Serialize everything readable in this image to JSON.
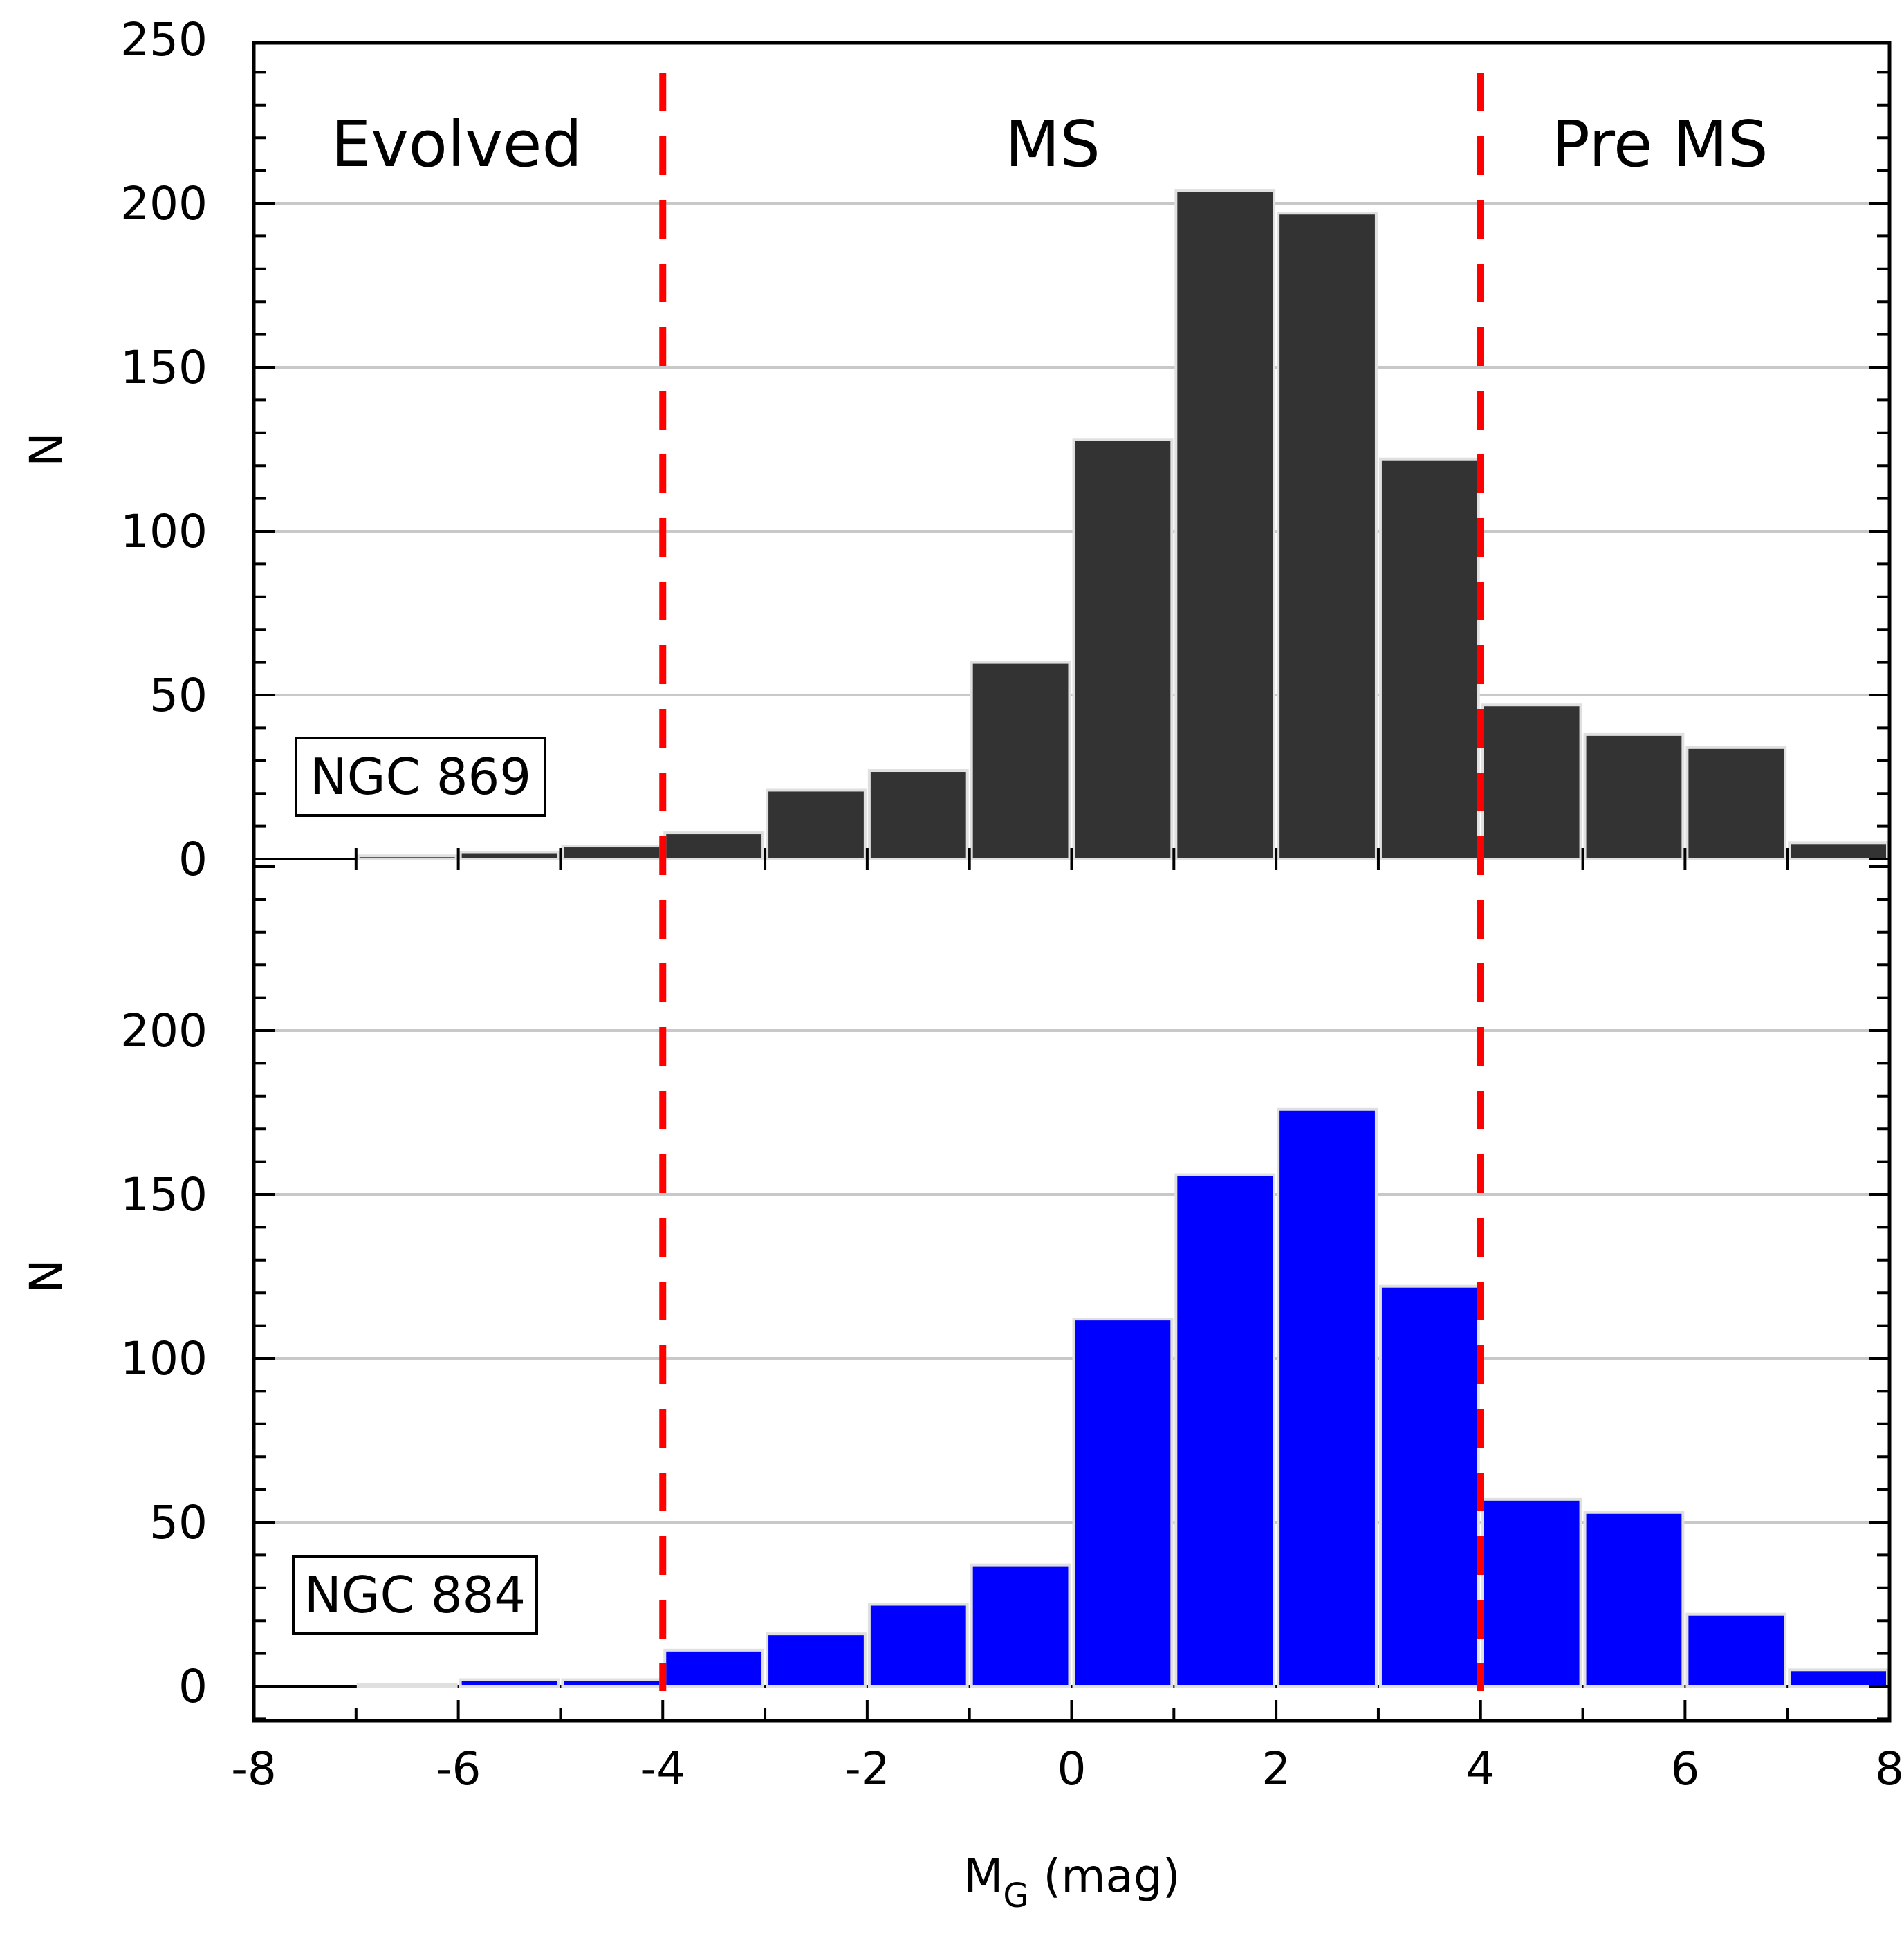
{
  "chart_data": [
    {
      "type": "bar",
      "panel_label": "NGC 869",
      "ylabel": "N",
      "xlim": [
        -8,
        8
      ],
      "ylim": [
        0,
        250
      ],
      "yticks": [
        0,
        50,
        100,
        150,
        200,
        250
      ],
      "bin_edges": [
        -7,
        -6,
        -5,
        -4,
        -3,
        -2,
        -1,
        0,
        1,
        2,
        3,
        4,
        5,
        6,
        7,
        8
      ],
      "values": [
        1,
        2,
        4,
        8,
        21,
        27,
        60,
        128,
        204,
        197,
        122,
        47,
        38,
        34,
        5
      ],
      "bar_color": "#333333",
      "grid": true,
      "regions": [
        {
          "label": "Evolved",
          "x_from": -8,
          "x_to": -4
        },
        {
          "label": "MS",
          "x_from": -4,
          "x_to": 4
        },
        {
          "label": "Pre MS",
          "x_from": 4,
          "x_to": 8
        }
      ],
      "boundaries": [
        -4,
        4
      ],
      "boundary_color": "#ff0000"
    },
    {
      "type": "bar",
      "panel_label": "NGC 884",
      "ylabel": "N",
      "xlabel": "M",
      "xlabel_subscript": "G",
      "xlabel_suffix": " (mag)",
      "xlim": [
        -8,
        8
      ],
      "ylim": [
        0,
        250
      ],
      "yticks": [
        0,
        50,
        100,
        150,
        200
      ],
      "xticks": [
        -8,
        -6,
        -4,
        -2,
        0,
        2,
        4,
        6,
        8
      ],
      "bin_edges": [
        -7,
        -6,
        -5,
        -4,
        -3,
        -2,
        -1,
        0,
        1,
        2,
        3,
        4,
        5,
        6,
        7,
        8
      ],
      "values": [
        0,
        2,
        2,
        11,
        16,
        25,
        37,
        112,
        156,
        176,
        122,
        57,
        53,
        22,
        5
      ],
      "bar_color": "#0000ff",
      "grid": true,
      "boundaries": [
        -4,
        4
      ],
      "boundary_color": "#ff0000"
    }
  ]
}
